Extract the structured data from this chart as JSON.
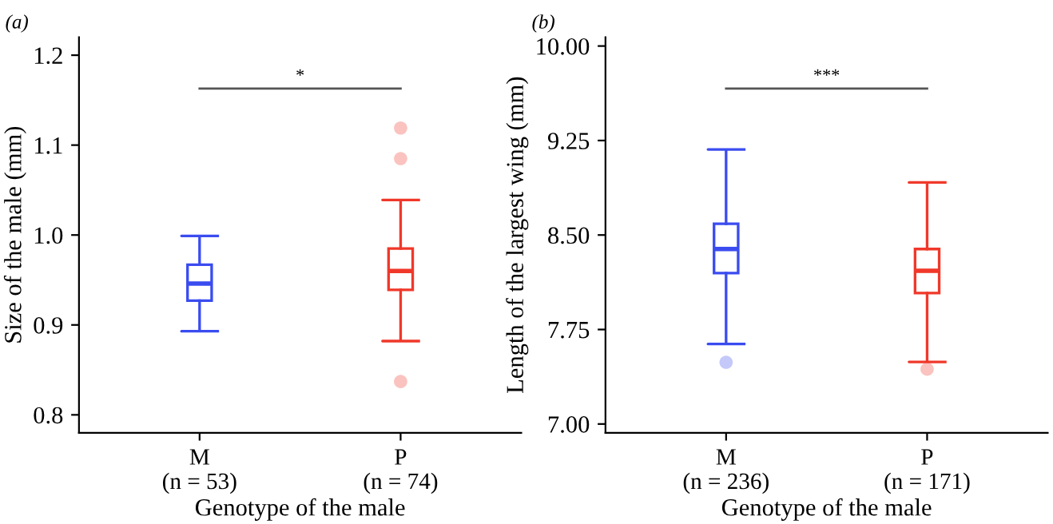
{
  "chart_data": [
    {
      "type": "box",
      "title": "(a)",
      "xlabel": "Genotype of the male",
      "ylabel": "Size of the male (mm)",
      "categories": [
        "M\n(n = 53)",
        "P\n(n = 74)"
      ],
      "colors": [
        "#3a4cf0",
        "#f0382a"
      ],
      "boxes": [
        {
          "low": 0.893,
          "q1": 0.927,
          "median": 0.946,
          "q3": 0.967,
          "high": 0.999
        },
        {
          "low": 0.882,
          "q1": 0.939,
          "median": 0.96,
          "q3": 0.985,
          "high": 1.039,
          "outliers": [
            1.119,
            1.085,
            0.837
          ]
        }
      ],
      "ylim": [
        0.78,
        1.22
      ],
      "yticks": [
        {
          "value": 0.8,
          "label": "0.8"
        },
        {
          "value": 0.9,
          "label": "0.9"
        },
        {
          "value": 1.0,
          "label": "1.0"
        },
        {
          "value": 1.1,
          "label": "1.1"
        },
        {
          "value": 1.2,
          "label": "1.2"
        }
      ],
      "annotations": [
        "*"
      ],
      "grid": false
    },
    {
      "type": "box",
      "title": "(b)",
      "xlabel": "Genotype of the male",
      "ylabel": "Length of the largest wing (mm)",
      "categories": [
        "M\n(n = 236)",
        "P\n(n = 171)"
      ],
      "colors": [
        "#3a4cf0",
        "#f0382a"
      ],
      "boxes": [
        {
          "low": 7.635,
          "q1": 8.198,
          "median": 8.389,
          "q3": 8.589,
          "high": 9.179,
          "outliers": [
            7.49
          ]
        },
        {
          "low": 7.493,
          "q1": 8.039,
          "median": 8.216,
          "q3": 8.389,
          "high": 8.917,
          "outliers": [
            7.435
          ]
        }
      ],
      "ylim": [
        6.93,
        10.07
      ],
      "yticks": [
        {
          "value": 7.0,
          "label": "7.00"
        },
        {
          "value": 7.75,
          "label": "7.75"
        },
        {
          "value": 8.5,
          "label": "8.50"
        },
        {
          "value": 9.25,
          "label": "9.25"
        },
        {
          "value": 10.0,
          "label": "10.00"
        }
      ],
      "annotations": [
        "***"
      ],
      "grid": false
    }
  ]
}
